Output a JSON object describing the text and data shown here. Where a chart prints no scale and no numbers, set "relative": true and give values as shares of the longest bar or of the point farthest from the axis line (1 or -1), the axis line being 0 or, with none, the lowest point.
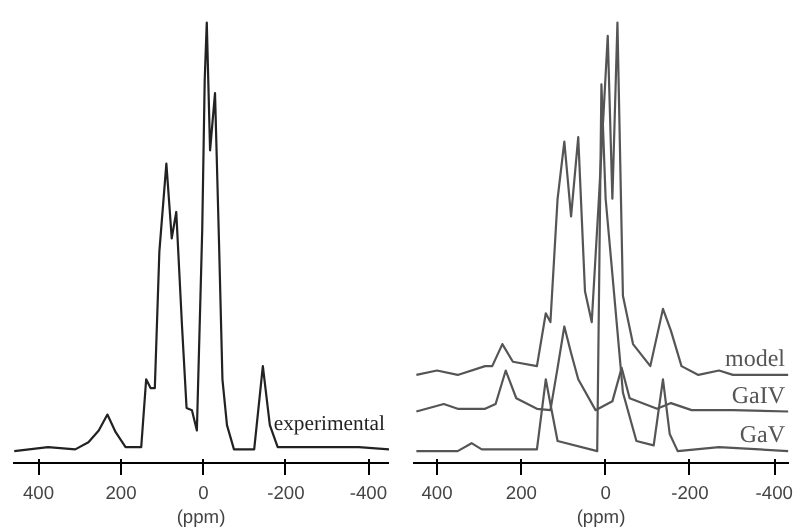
{
  "chart_data": [
    {
      "type": "line",
      "relative": true,
      "xlabel": "(ppm)",
      "xlim": [
        462,
        -450
      ],
      "xticks": [
        400,
        200,
        0,
        -200,
        -400
      ],
      "tick_labels": "x",
      "grid": false,
      "series": [
        {
          "name": "experimental",
          "color": "#222222",
          "x": [
            459,
            377,
            311,
            279,
            254,
            233,
            213,
            189,
            151,
            139,
            128,
            118,
            107,
            90,
            77,
            66,
            52,
            41,
            28,
            16,
            3,
            -3,
            -8,
            -16,
            -28,
            -38,
            -46,
            -57,
            -74,
            -123,
            -144,
            -161,
            -180,
            -262,
            -377,
            -450
          ],
          "values": [
            0.027,
            0.036,
            0.031,
            0.047,
            0.074,
            0.11,
            0.07,
            0.036,
            0.036,
            0.19,
            0.17,
            0.17,
            0.48,
            0.68,
            0.51,
            0.57,
            0.31,
            0.125,
            0.12,
            0.074,
            0.53,
            0.87,
            1.0,
            0.71,
            0.84,
            0.49,
            0.19,
            0.086,
            0.031,
            0.031,
            0.22,
            0.086,
            0.036,
            0.036,
            0.036,
            0.031
          ]
        }
      ]
    },
    {
      "type": "line",
      "relative": true,
      "xlabel": "(ppm)",
      "xlim": [
        457,
        -435
      ],
      "xticks": [
        400,
        200,
        0,
        -200,
        -400
      ],
      "tick_labels": "x",
      "grid": false,
      "series": [
        {
          "name": "model",
          "color": "#555555",
          "x": [
            449,
            400,
            351,
            286,
            269,
            245,
            220,
            163,
            142,
            131,
            114,
            98,
            82,
            65,
            49,
            33,
            16,
            -5,
            -16,
            -28,
            -41,
            -65,
            -106,
            -136,
            -155,
            -180,
            -220,
            -269,
            -302,
            -433
          ],
          "values": [
            0.2,
            0.21,
            0.2,
            0.22,
            0.22,
            0.27,
            0.23,
            0.22,
            0.34,
            0.32,
            0.6,
            0.73,
            0.56,
            0.74,
            0.39,
            0.32,
            0.6,
            0.97,
            0.6,
            1.0,
            0.38,
            0.27,
            0.22,
            0.35,
            0.3,
            0.22,
            0.2,
            0.21,
            0.2,
            0.2
          ]
        },
        {
          "name": "GaIV",
          "color": "#555555",
          "x": [
            449,
            384,
            351,
            286,
            261,
            237,
            212,
            163,
            131,
            114,
            98,
            82,
            65,
            24,
            -16,
            -38,
            -57,
            -122,
            -155,
            -204,
            -302,
            -433
          ],
          "values": [
            0.117,
            0.134,
            0.123,
            0.123,
            0.134,
            0.21,
            0.147,
            0.123,
            0.12,
            0.216,
            0.31,
            0.25,
            0.19,
            0.12,
            0.14,
            0.216,
            0.147,
            0.123,
            0.136,
            0.12,
            0.12,
            0.117
          ]
        },
        {
          "name": "GaV",
          "color": "#555555",
          "x": [
            449,
            351,
            318,
            294,
            163,
            142,
            131,
            114,
            20,
            10,
            0,
            -41,
            -73,
            -114,
            -136,
            -152,
            -171,
            -269,
            -433
          ],
          "values": [
            0.027,
            0.027,
            0.045,
            0.031,
            0.031,
            0.19,
            0.134,
            0.05,
            0.027,
            0.86,
            0.6,
            0.16,
            0.05,
            0.04,
            0.19,
            0.066,
            0.027,
            0.036,
            0.027
          ]
        }
      ]
    }
  ]
}
